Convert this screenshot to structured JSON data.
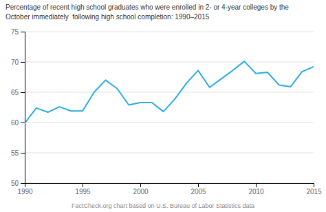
{
  "chart_data": {
    "type": "line",
    "title": "Percentage of recent high school graduates who were enrolled in 2- or 4-year colleges by the",
    "subtitle": "October immediately  following high school completion: 1990–2015",
    "annotations": [
      "FactCheck.org chart based on U.S. Bureau of Labor Statistics data"
    ],
    "x": [
      1990,
      1991,
      1992,
      1993,
      1994,
      1995,
      1996,
      1997,
      1998,
      1999,
      2000,
      2001,
      2002,
      2003,
      2004,
      2005,
      2006,
      2007,
      2008,
      2009,
      2010,
      2011,
      2012,
      2013,
      2014,
      2015
    ],
    "values": [
      59.9,
      62.4,
      61.7,
      62.6,
      61.9,
      61.9,
      65.0,
      67.0,
      65.6,
      62.9,
      63.3,
      63.3,
      61.8,
      63.9,
      66.5,
      68.6,
      65.8,
      67.2,
      68.6,
      70.1,
      68.1,
      68.3,
      66.2,
      65.9,
      68.4,
      69.2
    ],
    "color": "#29abe2",
    "xlim": [
      1990,
      2015
    ],
    "xticks": [
      1990,
      1995,
      2000,
      2005,
      2010,
      2015
    ],
    "ylim": [
      50,
      75
    ],
    "yticks": [
      50,
      55,
      60,
      65,
      70,
      75
    ],
    "grid": true
  }
}
